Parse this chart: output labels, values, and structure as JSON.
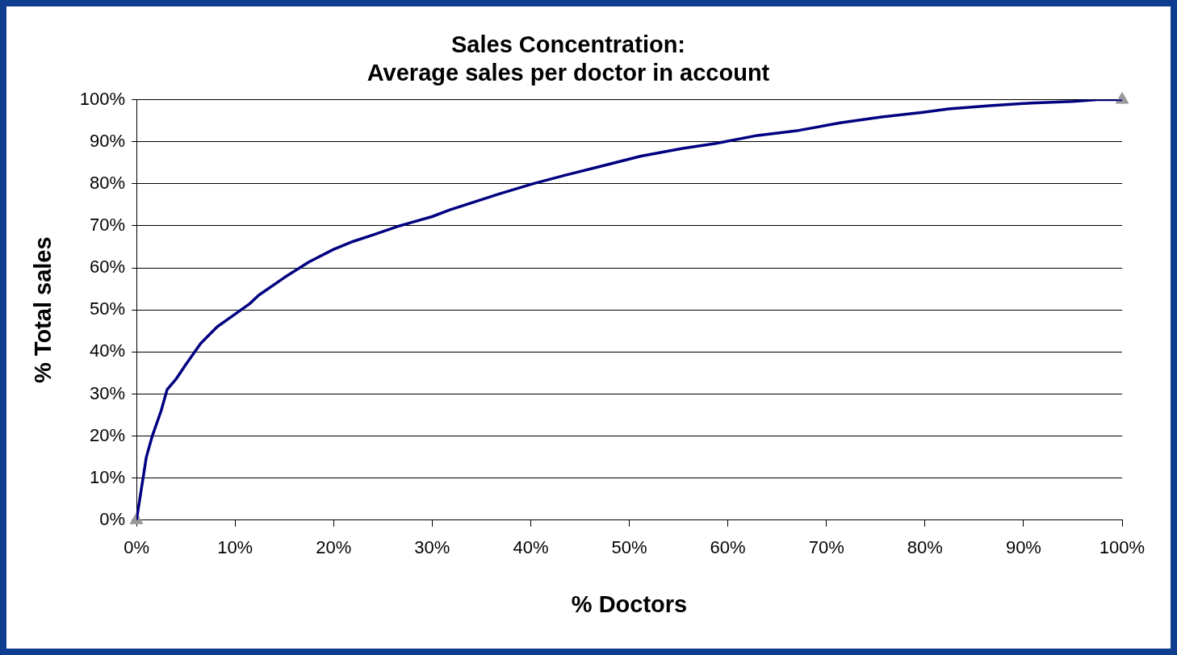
{
  "chart_data": {
    "type": "line",
    "title": "Sales Concentration:\nAverage sales per doctor in account",
    "xlabel": "% Doctors",
    "ylabel": "% Total sales",
    "xlim": [
      0,
      100
    ],
    "ylim": [
      0,
      100
    ],
    "xticks": [
      {
        "value": 0,
        "label": "0%"
      },
      {
        "value": 10,
        "label": "10%"
      },
      {
        "value": 20,
        "label": "20%"
      },
      {
        "value": 30,
        "label": "30%"
      },
      {
        "value": 40,
        "label": "40%"
      },
      {
        "value": 50,
        "label": "50%"
      },
      {
        "value": 60,
        "label": "60%"
      },
      {
        "value": 70,
        "label": "70%"
      },
      {
        "value": 80,
        "label": "80%"
      },
      {
        "value": 90,
        "label": "90%"
      },
      {
        "value": 100,
        "label": "100%"
      }
    ],
    "yticks": [
      {
        "value": 0,
        "label": "0%"
      },
      {
        "value": 10,
        "label": "10%"
      },
      {
        "value": 20,
        "label": "20%"
      },
      {
        "value": 30,
        "label": "30%"
      },
      {
        "value": 40,
        "label": "40%"
      },
      {
        "value": 50,
        "label": "50%"
      },
      {
        "value": 60,
        "label": "60%"
      },
      {
        "value": 70,
        "label": "70%"
      },
      {
        "value": 80,
        "label": "80%"
      },
      {
        "value": 90,
        "label": "90%"
      },
      {
        "value": 100,
        "label": "100%"
      }
    ],
    "grid": "y",
    "legend": false,
    "series": [
      {
        "type": "line",
        "color": "#000080",
        "marker": "none",
        "line_style": "solid",
        "x": [
          0,
          1,
          1.6,
          2.5,
          3.1,
          4,
          5,
          6.5,
          8.2,
          9.4,
          11.5,
          12.4,
          15,
          17.5,
          20,
          22,
          24.2,
          26.7,
          30,
          31.8,
          36.8,
          40.2,
          43.6,
          47,
          51.2,
          55.4,
          58.8,
          63,
          67.2,
          71.4,
          75.6,
          79.8,
          82.4,
          86.6,
          90.8,
          95,
          97.5,
          100
        ],
        "values": [
          0,
          15,
          20,
          26,
          31,
          33.5,
          37,
          42,
          46,
          48,
          51.5,
          53.5,
          57.7,
          61.4,
          64.4,
          66.3,
          68,
          70,
          72.2,
          73.8,
          77.6,
          80,
          82.1,
          84.1,
          86.6,
          88.4,
          89.6,
          91.5,
          92.7,
          94.5,
          95.9,
          97,
          97.8,
          98.6,
          99.2,
          99.6,
          100,
          100
        ]
      },
      {
        "type": "scatter",
        "color": "#999999",
        "marker": "triangle",
        "x": [
          0,
          100
        ],
        "values": [
          0,
          100
        ]
      }
    ]
  }
}
